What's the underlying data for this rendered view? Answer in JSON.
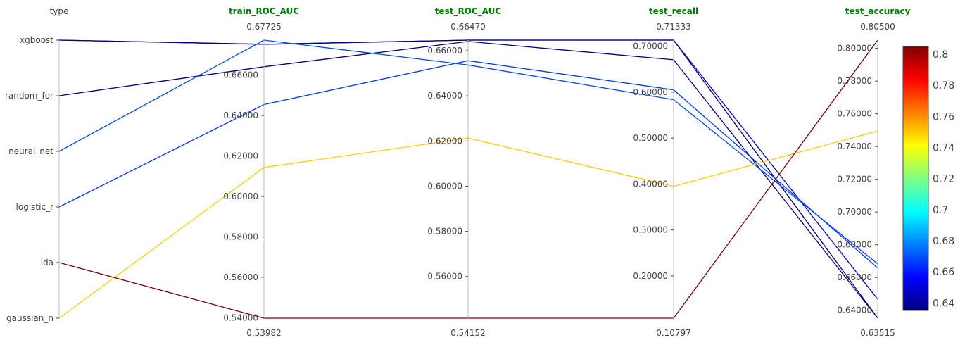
{
  "chart_data": {
    "type": "parallel_coordinates",
    "dimensions": [
      {
        "key": "type",
        "label": "type",
        "categorical": true,
        "categories": [
          "gaussian_n",
          "lda",
          "logistic_r",
          "neural_net",
          "random_for",
          "xgboost"
        ]
      },
      {
        "key": "train_ROC_AUC",
        "label": "train_ROC_AUC",
        "min_label": "0.53982",
        "max_label": "0.67725",
        "min": 0.53982,
        "max": 0.67725,
        "ticks": [
          "0.54000",
          "0.56000",
          "0.58000",
          "0.60000",
          "0.62000",
          "0.64000",
          "0.66000"
        ]
      },
      {
        "key": "test_ROC_AUC",
        "label": "test_ROC_AUC",
        "min_label": "0.54152",
        "max_label": "0.66470",
        "min": 0.54152,
        "max": 0.6647,
        "ticks": [
          "0.56000",
          "0.58000",
          "0.60000",
          "0.62000",
          "0.64000",
          "0.66000"
        ]
      },
      {
        "key": "test_recall",
        "label": "test_recall",
        "min_label": "0.10797",
        "max_label": "0.71333",
        "min": 0.10797,
        "max": 0.71333,
        "ticks": [
          "0.20000",
          "0.30000",
          "0.40000",
          "0.50000",
          "0.60000",
          "0.70000"
        ]
      },
      {
        "key": "test_accuracy",
        "label": "test_accuracy",
        "min_label": "0.63515",
        "max_label": "0.80500",
        "min": 0.63515,
        "max": 0.805,
        "ticks": [
          "0.64000",
          "0.66000",
          "0.68000",
          "0.70000",
          "0.72000",
          "0.74000",
          "0.76000",
          "0.78000",
          "0.80000"
        ]
      }
    ],
    "rows": [
      {
        "type": "xgboost",
        "train_ROC_AUC": 0.6752,
        "test_ROC_AUC": 0.6647,
        "test_recall": 0.71333,
        "test_accuracy": 0.6467
      },
      {
        "type": "xgboost",
        "train_ROC_AUC": 0.6752,
        "test_ROC_AUC": 0.6647,
        "test_recall": 0.71333,
        "test_accuracy": 0.6352
      },
      {
        "type": "random_for",
        "train_ROC_AUC": 0.6641,
        "test_ROC_AUC": 0.6641,
        "test_recall": 0.6706,
        "test_accuracy": 0.6352
      },
      {
        "type": "neural_net",
        "train_ROC_AUC": 0.67725,
        "test_ROC_AUC": 0.6537,
        "test_recall": 0.5836,
        "test_accuracy": 0.6683
      },
      {
        "type": "logistic_r",
        "train_ROC_AUC": 0.6454,
        "test_ROC_AUC": 0.6556,
        "test_recall": 0.6051,
        "test_accuracy": 0.6658
      },
      {
        "type": "gaussian_n",
        "train_ROC_AUC": 0.6143,
        "test_ROC_AUC": 0.6213,
        "test_recall": 0.3951,
        "test_accuracy": 0.7495
      },
      {
        "type": "lda",
        "train_ROC_AUC": 0.53982,
        "test_ROC_AUC": 0.54152,
        "test_recall": 0.10797,
        "test_accuracy": 0.805
      }
    ],
    "color_dimension": "test_accuracy",
    "colorscale": "jet",
    "colorbar": {
      "min": 0.63515,
      "max": 0.805,
      "ticks": [
        "0.64",
        "0.66",
        "0.68",
        "0.7",
        "0.72",
        "0.74",
        "0.76",
        "0.78",
        "0.8"
      ]
    },
    "colors": {
      "label_green": "#008000",
      "axis": "#bdbdbd",
      "text": "#444444"
    }
  }
}
